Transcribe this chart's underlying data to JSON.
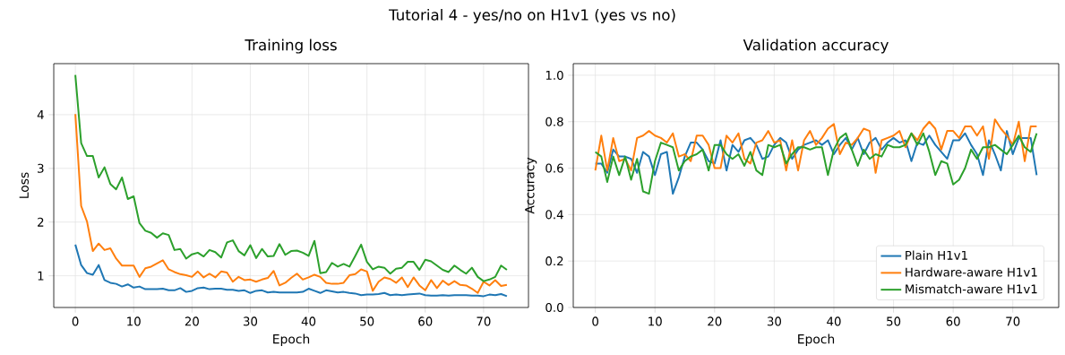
{
  "chart_data": [
    {
      "type": "line",
      "title": "Tutorial 4 - yes/no on H1v1 (yes vs no)",
      "subtitle": "Training loss",
      "xlabel": "Epoch",
      "ylabel": "Loss",
      "x": [
        0,
        1,
        2,
        3,
        4,
        5,
        6,
        7,
        8,
        9,
        10,
        11,
        12,
        13,
        14,
        15,
        16,
        17,
        18,
        19,
        20,
        21,
        22,
        23,
        24,
        25,
        26,
        27,
        28,
        29,
        30,
        31,
        32,
        33,
        34,
        35,
        36,
        37,
        38,
        39,
        40,
        41,
        42,
        43,
        44,
        45,
        46,
        47,
        48,
        49,
        50,
        51,
        52,
        53,
        54,
        55,
        56,
        57,
        58,
        59,
        60,
        61,
        62,
        63,
        64,
        65,
        66,
        67,
        68,
        69,
        70,
        71,
        72,
        73,
        74
      ],
      "xlim": [
        -3.7,
        77.7
      ],
      "xticks": [
        0,
        10,
        20,
        30,
        40,
        50,
        60,
        70
      ],
      "ylim": [
        0.41,
        4.95
      ],
      "yticks": [
        1,
        2,
        3,
        4
      ],
      "grid": true,
      "series": [
        {
          "color": "#1f77b4",
          "values": [
            1.58,
            1.2,
            1.05,
            1.02,
            1.2,
            0.92,
            0.87,
            0.85,
            0.8,
            0.84,
            0.78,
            0.8,
            0.75,
            0.75,
            0.75,
            0.76,
            0.73,
            0.73,
            0.77,
            0.7,
            0.72,
            0.77,
            0.78,
            0.75,
            0.76,
            0.76,
            0.74,
            0.74,
            0.72,
            0.73,
            0.68,
            0.72,
            0.73,
            0.69,
            0.7,
            0.69,
            0.69,
            0.69,
            0.69,
            0.7,
            0.76,
            0.72,
            0.68,
            0.73,
            0.71,
            0.69,
            0.7,
            0.68,
            0.67,
            0.64,
            0.65,
            0.65,
            0.66,
            0.68,
            0.64,
            0.65,
            0.64,
            0.65,
            0.66,
            0.67,
            0.64,
            0.63,
            0.63,
            0.64,
            0.63,
            0.64,
            0.64,
            0.64,
            0.63,
            0.63,
            0.62,
            0.65,
            0.64,
            0.66,
            0.62
          ]
        },
        {
          "color": "#ff7f0e",
          "values": [
            4.01,
            2.3,
            2.01,
            1.46,
            1.6,
            1.48,
            1.51,
            1.32,
            1.19,
            1.19,
            1.19,
            0.98,
            1.14,
            1.17,
            1.23,
            1.29,
            1.12,
            1.07,
            1.03,
            1.01,
            0.98,
            1.08,
            0.97,
            1.04,
            0.97,
            1.08,
            1.06,
            0.89,
            0.98,
            0.92,
            0.93,
            0.89,
            0.93,
            0.96,
            1.09,
            0.82,
            0.87,
            0.96,
            1.04,
            0.93,
            0.97,
            1.02,
            0.98,
            0.87,
            0.85,
            0.85,
            0.87,
            1.01,
            1.03,
            1.12,
            1.08,
            0.72,
            0.89,
            0.97,
            0.94,
            0.87,
            0.97,
            0.79,
            0.97,
            0.82,
            0.73,
            0.92,
            0.77,
            0.91,
            0.83,
            0.9,
            0.83,
            0.82,
            0.76,
            0.68,
            0.89,
            0.82,
            0.92,
            0.81,
            0.83
          ]
        },
        {
          "color": "#2ca02c",
          "values": [
            4.74,
            3.47,
            3.23,
            3.23,
            2.83,
            3.02,
            2.71,
            2.61,
            2.83,
            2.43,
            2.48,
            1.98,
            1.84,
            1.8,
            1.71,
            1.79,
            1.76,
            1.48,
            1.5,
            1.32,
            1.4,
            1.43,
            1.36,
            1.48,
            1.44,
            1.34,
            1.62,
            1.66,
            1.46,
            1.38,
            1.57,
            1.33,
            1.5,
            1.36,
            1.37,
            1.59,
            1.39,
            1.46,
            1.47,
            1.43,
            1.37,
            1.65,
            1.05,
            1.07,
            1.24,
            1.17,
            1.22,
            1.17,
            1.37,
            1.58,
            1.26,
            1.12,
            1.17,
            1.15,
            1.04,
            1.13,
            1.15,
            1.26,
            1.26,
            1.11,
            1.3,
            1.27,
            1.19,
            1.11,
            1.07,
            1.19,
            1.11,
            1.04,
            1.15,
            0.98,
            0.9,
            0.93,
            0.98,
            1.19,
            1.11
          ]
        }
      ]
    },
    {
      "type": "line",
      "title": "Validation accuracy",
      "xlabel": "Epoch",
      "ylabel": "Accuracy",
      "x": [
        0,
        1,
        2,
        3,
        4,
        5,
        6,
        7,
        8,
        9,
        10,
        11,
        12,
        13,
        14,
        15,
        16,
        17,
        18,
        19,
        20,
        21,
        22,
        23,
        24,
        25,
        26,
        27,
        28,
        29,
        30,
        31,
        32,
        33,
        34,
        35,
        36,
        37,
        38,
        39,
        40,
        41,
        42,
        43,
        44,
        45,
        46,
        47,
        48,
        49,
        50,
        51,
        52,
        53,
        54,
        55,
        56,
        57,
        58,
        59,
        60,
        61,
        62,
        63,
        64,
        65,
        66,
        67,
        68,
        69,
        70,
        71,
        72,
        73,
        74
      ],
      "xlim": [
        -3.7,
        77.7
      ],
      "xticks": [
        0,
        10,
        20,
        30,
        40,
        50,
        60,
        70
      ],
      "ylim": [
        0,
        1.05
      ],
      "yticks": [
        {
          "value": 0,
          "label": "0.0"
        },
        {
          "value": 0.2,
          "label": "0.2"
        },
        {
          "value": 0.4,
          "label": "0.4"
        },
        {
          "value": 0.6,
          "label": "0.6"
        },
        {
          "value": 0.8,
          "label": "0.8"
        },
        {
          "value": 1,
          "label": "1.0"
        }
      ],
      "grid": true,
      "legend": "bottom right",
      "series": [
        {
          "name": "Plain H1v1",
          "color": "#1f77b4",
          "values": [
            0.62,
            0.62,
            0.58,
            0.68,
            0.65,
            0.65,
            0.64,
            0.58,
            0.67,
            0.65,
            0.57,
            0.66,
            0.67,
            0.49,
            0.56,
            0.65,
            0.71,
            0.71,
            0.68,
            0.63,
            0.62,
            0.72,
            0.59,
            0.7,
            0.67,
            0.72,
            0.73,
            0.7,
            0.64,
            0.65,
            0.7,
            0.73,
            0.71,
            0.64,
            0.68,
            0.7,
            0.71,
            0.72,
            0.7,
            0.72,
            0.66,
            0.7,
            0.73,
            0.68,
            0.73,
            0.66,
            0.71,
            0.73,
            0.68,
            0.71,
            0.73,
            0.71,
            0.72,
            0.63,
            0.71,
            0.7,
            0.74,
            0.7,
            0.67,
            0.64,
            0.72,
            0.72,
            0.75,
            0.7,
            0.66,
            0.57,
            0.72,
            0.66,
            0.59,
            0.76,
            0.66,
            0.73,
            0.73,
            0.73,
            0.57
          ]
        },
        {
          "name": "Hardware-aware H1v1",
          "color": "#ff7f0e",
          "values": [
            0.59,
            0.74,
            0.59,
            0.73,
            0.63,
            0.64,
            0.59,
            0.73,
            0.74,
            0.76,
            0.74,
            0.73,
            0.71,
            0.75,
            0.65,
            0.66,
            0.63,
            0.74,
            0.74,
            0.7,
            0.6,
            0.6,
            0.74,
            0.71,
            0.75,
            0.64,
            0.62,
            0.71,
            0.72,
            0.76,
            0.71,
            0.72,
            0.59,
            0.72,
            0.59,
            0.72,
            0.76,
            0.7,
            0.73,
            0.77,
            0.79,
            0.66,
            0.71,
            0.7,
            0.73,
            0.77,
            0.76,
            0.58,
            0.72,
            0.73,
            0.74,
            0.76,
            0.69,
            0.75,
            0.72,
            0.77,
            0.8,
            0.77,
            0.68,
            0.76,
            0.76,
            0.73,
            0.78,
            0.78,
            0.74,
            0.78,
            0.64,
            0.81,
            0.77,
            0.74,
            0.7,
            0.8,
            0.63,
            0.78,
            0.78
          ]
        },
        {
          "name": "Mismatch-aware H1v1",
          "color": "#2ca02c",
          "values": [
            0.67,
            0.65,
            0.54,
            0.65,
            0.57,
            0.65,
            0.55,
            0.64,
            0.5,
            0.49,
            0.63,
            0.71,
            0.7,
            0.69,
            0.59,
            0.63,
            0.65,
            0.66,
            0.68,
            0.59,
            0.7,
            0.7,
            0.66,
            0.64,
            0.66,
            0.61,
            0.67,
            0.59,
            0.57,
            0.7,
            0.69,
            0.7,
            0.62,
            0.66,
            0.69,
            0.69,
            0.68,
            0.69,
            0.69,
            0.57,
            0.68,
            0.73,
            0.75,
            0.68,
            0.61,
            0.68,
            0.64,
            0.66,
            0.65,
            0.7,
            0.69,
            0.69,
            0.7,
            0.75,
            0.7,
            0.75,
            0.67,
            0.57,
            0.63,
            0.62,
            0.53,
            0.55,
            0.6,
            0.68,
            0.64,
            0.69,
            0.69,
            0.7,
            0.68,
            0.66,
            0.7,
            0.74,
            0.69,
            0.67,
            0.75
          ]
        }
      ]
    }
  ]
}
